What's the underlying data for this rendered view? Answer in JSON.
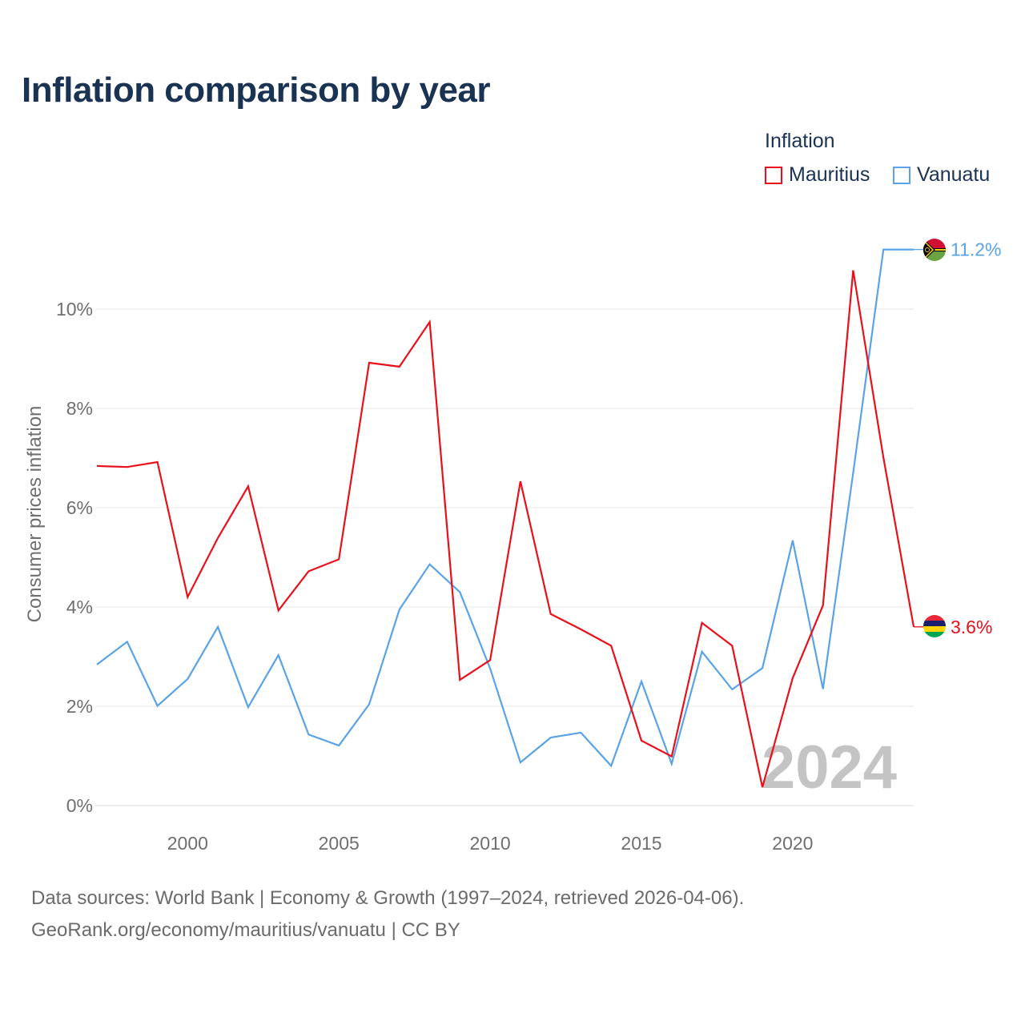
{
  "title": "Inflation comparison by year",
  "legend": {
    "title": "Inflation",
    "items": [
      {
        "name": "Mauritius",
        "color": "#e8101b"
      },
      {
        "name": "Vanuatu",
        "color": "#5aa3e6"
      }
    ]
  },
  "footer": {
    "line1": "Data sources: World Bank | Economy & Growth (1997–2024, retrieved 2026-04-06).",
    "line2": "GeoRank.org/economy/mauritius/vanuatu | CC BY"
  },
  "chart_data": {
    "type": "line",
    "title": "Inflation comparison by year",
    "xlabel": "",
    "ylabel": "Consumer prices inflation",
    "ylim": [
      0,
      11.5
    ],
    "xlim": [
      1997,
      2024
    ],
    "x_ticks": [
      2000,
      2005,
      2010,
      2015,
      2020
    ],
    "x_tick_labels": [
      "2000",
      "2005",
      "2010",
      "2015",
      "2020"
    ],
    "y_ticks": [
      0,
      2,
      4,
      6,
      8,
      10
    ],
    "y_tick_labels": [
      "0%",
      "2%",
      "4%",
      "6%",
      "8%",
      "10%"
    ],
    "grid": true,
    "current_year_label": "2024",
    "x": [
      1997,
      1998,
      1999,
      2000,
      2001,
      2002,
      2003,
      2004,
      2005,
      2006,
      2007,
      2008,
      2009,
      2010,
      2011,
      2012,
      2013,
      2014,
      2015,
      2016,
      2017,
      2018,
      2019,
      2020,
      2021,
      2022,
      2023,
      2024
    ],
    "series": [
      {
        "name": "Mauritius",
        "color": "#e8101b",
        "values": [
          6.84,
          6.82,
          6.92,
          4.2,
          5.39,
          6.43,
          3.93,
          4.72,
          4.96,
          8.92,
          8.84,
          9.74,
          2.53,
          2.93,
          6.53,
          3.86,
          3.55,
          3.22,
          1.31,
          0.99,
          3.68,
          3.22,
          0.37,
          2.57,
          4.03,
          10.78,
          7.01,
          3.6
        ],
        "end_label": "3.6%",
        "flag": "mauritius"
      },
      {
        "name": "Vanuatu",
        "color": "#5aa3e6",
        "values": [
          2.84,
          3.3,
          2.01,
          2.55,
          3.6,
          1.98,
          3.03,
          1.43,
          1.21,
          2.04,
          3.95,
          4.86,
          4.3,
          2.76,
          0.87,
          1.37,
          1.47,
          0.8,
          2.5,
          0.84,
          3.1,
          2.34,
          2.77,
          5.34,
          2.35,
          6.7,
          11.2,
          11.2
        ],
        "end_label": "11.2%",
        "flag": "vanuatu"
      }
    ]
  }
}
